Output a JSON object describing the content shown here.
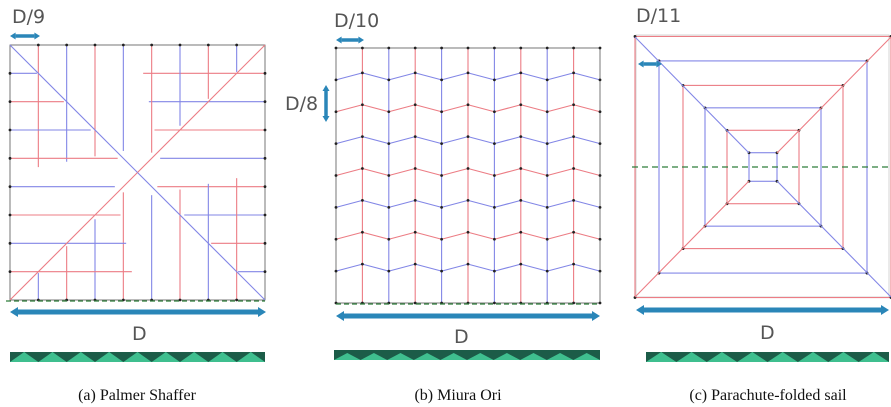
{
  "panels": [
    {
      "spacing_label": "D/9",
      "size_label": "D",
      "caption": "(a) Palmer Shaffer"
    },
    {
      "spacing_label": "D/10",
      "row_label": "D/8",
      "size_label": "D",
      "caption": "(b) Miura Ori"
    },
    {
      "spacing_label": "D/11",
      "size_label": "D",
      "caption": "(c) Parachute-folded sail"
    }
  ]
}
